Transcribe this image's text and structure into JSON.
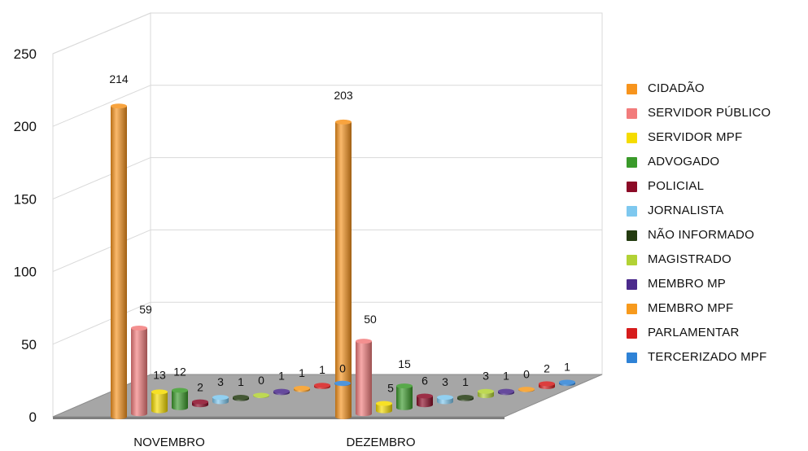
{
  "chart_data": {
    "type": "bar",
    "categories": [
      "NOVEMBRO",
      "DEZEMBRO"
    ],
    "series": [
      {
        "name": "CIDADÃO",
        "color": "#f7941d",
        "values": [
          214,
          203
        ]
      },
      {
        "name": "SERVIDOR PÚBLICO",
        "color": "#f27c7c",
        "values": [
          59,
          50
        ]
      },
      {
        "name": " SERVIDOR MPF",
        "color": "#f5dc00",
        "values": [
          13,
          5
        ]
      },
      {
        "name": "ADVOGADO",
        "color": "#3a9a2a",
        "values": [
          12,
          15
        ]
      },
      {
        "name": "POLICIAL",
        "color": "#8b0a26",
        "values": [
          2,
          6
        ]
      },
      {
        "name": "JORNALISTA",
        "color": "#7ec8ef",
        "values": [
          3,
          3
        ]
      },
      {
        "name": "NÃO INFORMADO",
        "color": "#233b10",
        "values": [
          1,
          1
        ]
      },
      {
        "name": "MAGISTRADO",
        "color": "#b2d235",
        "values": [
          0,
          3
        ]
      },
      {
        "name": "MEMBRO MP",
        "color": "#4b2a8c",
        "values": [
          1,
          1
        ]
      },
      {
        "name": "MEMBRO MPF",
        "color": "#f79a1d",
        "values": [
          1,
          0
        ]
      },
      {
        "name": "PARLAMENTAR",
        "color": "#d61c1c",
        "values": [
          1,
          2
        ]
      },
      {
        "name": "TERCERIZADO MPF",
        "color": "#2e82d6",
        "values": [
          0,
          1
        ]
      }
    ],
    "y_ticks": [
      "0",
      "50",
      "100",
      "150",
      "200",
      "250"
    ],
    "ylim": [
      0,
      250
    ],
    "grid": true,
    "legend_position": "right",
    "style": "3d"
  }
}
